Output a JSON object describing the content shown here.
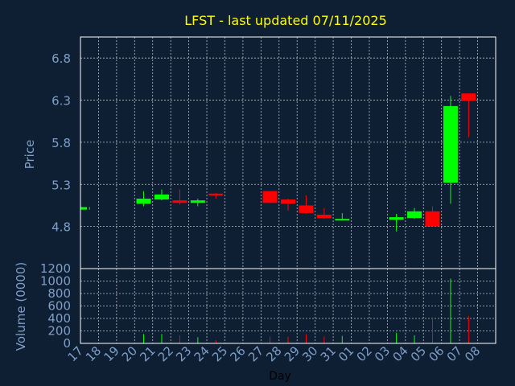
{
  "chart_data": {
    "type": "candlestick",
    "title": "LFST - last updated 07/11/2025",
    "xlabel": "Day",
    "ylabel": "Price",
    "volume_label": "Volume (0000)",
    "grid": true,
    "colors": {
      "background": "#0e1e33",
      "title": "#ffff00",
      "axis_text": "#7f9fc8",
      "xlabel": "#000000",
      "grid": "#ffffff",
      "up": "#00ff00",
      "down": "#ff0000"
    },
    "price_ticks": [
      4.8,
      5.3,
      5.8,
      6.3,
      6.8
    ],
    "price_tick_labels": [
      "4.8",
      "5.3",
      "5.8",
      "6.3",
      "6.8"
    ],
    "price_range": [
      4.3,
      7.05
    ],
    "volume_ticks": [
      0,
      200,
      400,
      600,
      800,
      1000,
      1200
    ],
    "volume_tick_labels": [
      "0",
      "200",
      "400",
      "600",
      "800",
      "1000",
      "1200"
    ],
    "volume_range": [
      0,
      1200
    ],
    "x_tick_labels": [
      "17",
      "18",
      "19",
      "20",
      "21",
      "22",
      "23",
      "24",
      "25",
      "26",
      "27",
      "28",
      "29",
      "30",
      "31",
      "01",
      "02",
      "03",
      "04",
      "05",
      "06",
      "07",
      "08"
    ],
    "candles": [
      {
        "day": "17",
        "open": 5.0,
        "close": 5.03,
        "high": 5.03,
        "low": 5.0,
        "volume": 5
      },
      {
        "day": "20",
        "open": 5.07,
        "close": 5.13,
        "high": 5.22,
        "low": 5.04,
        "volume": 150
      },
      {
        "day": "21",
        "open": 5.12,
        "close": 5.18,
        "high": 5.24,
        "low": 5.11,
        "volume": 150
      },
      {
        "day": "22",
        "open": 5.11,
        "close": 5.08,
        "high": 5.24,
        "low": 5.06,
        "volume": 130
      },
      {
        "day": "23",
        "open": 5.08,
        "close": 5.11,
        "high": 5.13,
        "low": 5.04,
        "volume": 100
      },
      {
        "day": "24",
        "open": 5.19,
        "close": 5.17,
        "high": 5.2,
        "low": 5.13,
        "volume": 50
      },
      {
        "day": "27",
        "open": 5.22,
        "close": 5.08,
        "high": 5.22,
        "low": 5.08,
        "volume": 110
      },
      {
        "day": "28",
        "open": 5.12,
        "close": 5.07,
        "high": 5.13,
        "low": 4.99,
        "volume": 110
      },
      {
        "day": "29",
        "open": 5.05,
        "close": 4.96,
        "high": 5.17,
        "low": 4.95,
        "volume": 150
      },
      {
        "day": "30",
        "open": 4.94,
        "close": 4.9,
        "high": 5.02,
        "low": 4.89,
        "volume": 110
      },
      {
        "day": "31",
        "open": 4.88,
        "close": 4.89,
        "high": 4.96,
        "low": 4.87,
        "volume": 120
      },
      {
        "day": "03",
        "open": 4.88,
        "close": 4.91,
        "high": 4.95,
        "low": 4.74,
        "volume": 170
      },
      {
        "day": "04",
        "open": 4.9,
        "close": 4.98,
        "high": 5.02,
        "low": 4.89,
        "volume": 130
      },
      {
        "day": "05",
        "open": 4.98,
        "close": 4.8,
        "high": 5.04,
        "low": 4.8,
        "volume": 420
      },
      {
        "day": "06",
        "open": 5.32,
        "close": 6.23,
        "high": 6.35,
        "low": 5.07,
        "volume": 1040
      },
      {
        "day": "07",
        "open": 6.38,
        "close": 6.29,
        "high": 6.38,
        "low": 5.86,
        "volume": 440
      }
    ]
  }
}
